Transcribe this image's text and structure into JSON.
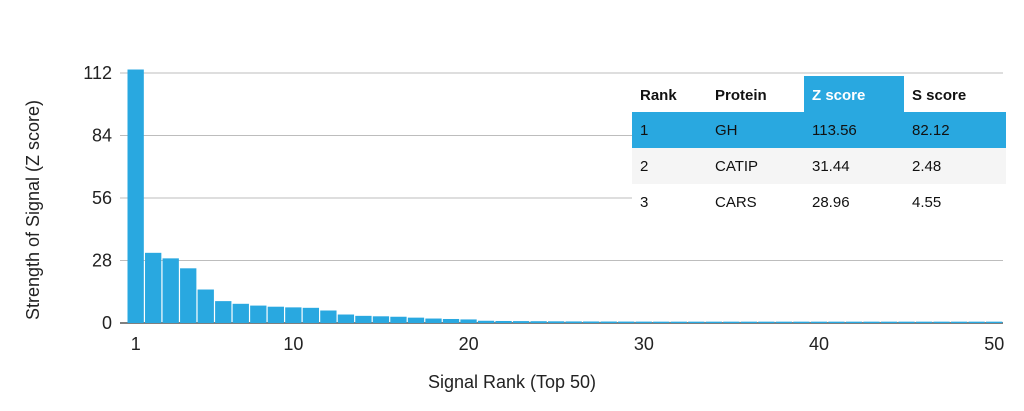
{
  "chart_data": {
    "type": "bar",
    "xlabel": "Signal Rank (Top 50)",
    "ylabel": "Strength of Signal (Z score)",
    "xlim": [
      1,
      50
    ],
    "ylim": [
      0,
      112
    ],
    "x_ticks": [
      "1",
      "10",
      "20",
      "30",
      "40",
      "50"
    ],
    "y_ticks": [
      "0",
      "28",
      "56",
      "84",
      "112"
    ],
    "grid": true,
    "bar_color": "#29a8e0",
    "values": [
      113.56,
      31.44,
      28.96,
      24.5,
      15.0,
      9.8,
      8.6,
      7.8,
      7.3,
      7.0,
      6.8,
      5.6,
      3.8,
      3.2,
      3.0,
      2.8,
      2.4,
      2.0,
      1.8,
      1.6,
      1.0,
      0.9,
      0.85,
      0.8,
      0.75,
      0.7,
      0.68,
      0.66,
      0.64,
      0.62,
      0.6,
      0.6,
      0.6,
      0.6,
      0.6,
      0.6,
      0.6,
      0.6,
      0.6,
      0.6,
      0.6,
      0.6,
      0.6,
      0.6,
      0.6,
      0.6,
      0.6,
      0.6,
      0.6,
      0.6
    ]
  },
  "table": {
    "headers": [
      "Rank",
      "Protein",
      "Z score",
      "S score"
    ],
    "highlight_color": "#29a8e0",
    "rows": [
      [
        "1",
        "GH",
        "113.56",
        "82.12"
      ],
      [
        "2",
        "CATIP",
        "31.44",
        "2.48"
      ],
      [
        "3",
        "CARS",
        "28.96",
        "4.55"
      ]
    ]
  }
}
